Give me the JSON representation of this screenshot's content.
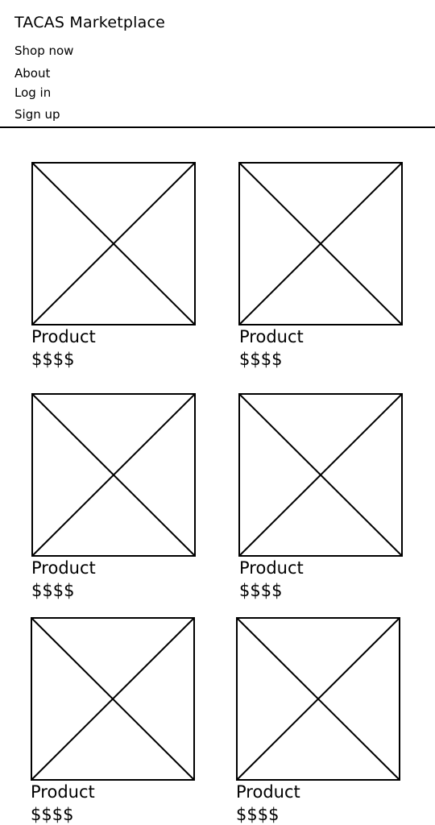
{
  "header": {
    "title": "TACAS Marketplace",
    "nav": [
      {
        "label": "Shop now"
      },
      {
        "label": "About"
      },
      {
        "label": "Log in"
      },
      {
        "label": "Sign up"
      }
    ]
  },
  "products": [
    {
      "name": "Product",
      "price": "$$$$"
    },
    {
      "name": "Product",
      "price": "$$$$"
    },
    {
      "name": "Product",
      "price": "$$$$"
    },
    {
      "name": "Product",
      "price": "$$$$"
    },
    {
      "name": "Product",
      "price": "$$$$"
    },
    {
      "name": "Product",
      "price": "$$$$"
    }
  ],
  "image_placeholder_icon": "image-placeholder-x-icon"
}
